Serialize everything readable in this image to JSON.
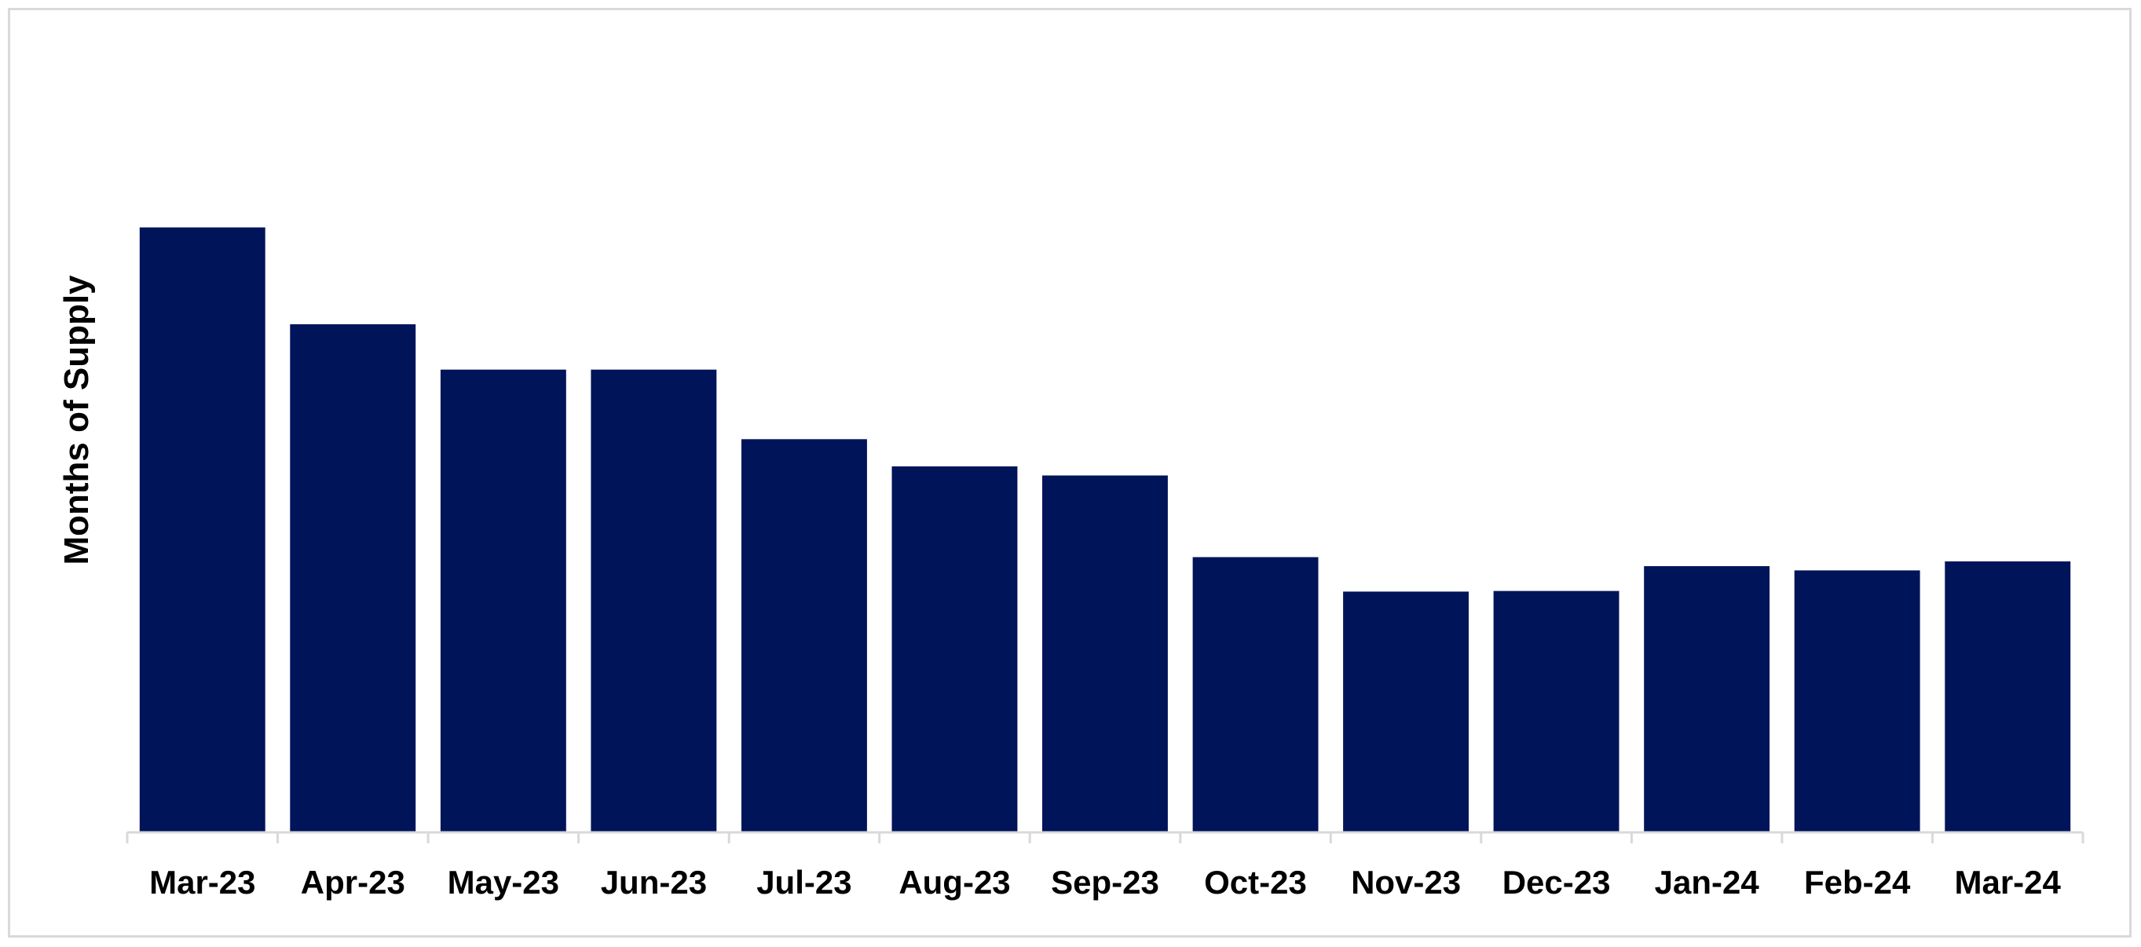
{
  "chart_data": {
    "type": "bar",
    "title": "",
    "xlabel": "",
    "ylabel": "Months of Supply",
    "categories": [
      "Mar-23",
      "Apr-23",
      "May-23",
      "Jun-23",
      "Jul-23",
      "Aug-23",
      "Sep-23",
      "Oct-23",
      "Nov-23",
      "Dec-23",
      "Jan-24",
      "Feb-24",
      "Mar-24"
    ],
    "values": [
      10.0,
      8.4,
      7.65,
      7.65,
      6.5,
      6.05,
      5.9,
      4.55,
      3.98,
      3.99,
      4.4,
      4.33,
      4.48
    ],
    "ylim": [
      0,
      13.5
    ],
    "grid": false,
    "legend": "none",
    "bar_color": "#00145a",
    "axis_color": "#d9d9d9"
  }
}
